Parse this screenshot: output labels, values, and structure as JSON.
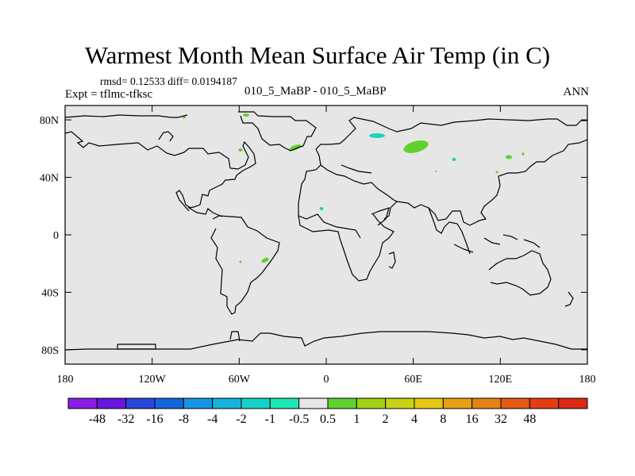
{
  "title": "Warmest Month Mean Surface Air Temp (in C)",
  "stats": "rmsd= 0.12533  diff= 0.0194187",
  "left_label": "Expt = tflmc-tfksc",
  "center_label": "010_5_MaBP - 010_5_MaBP",
  "right_label": "ANN",
  "map": {
    "lon_range": [
      -180,
      180
    ],
    "lat_range": [
      -90,
      90
    ],
    "background": "#e6e6e6",
    "x_ticks": [
      {
        "value": -180,
        "label": "180"
      },
      {
        "value": -120,
        "label": "120W"
      },
      {
        "value": -60,
        "label": "60W"
      },
      {
        "value": 0,
        "label": "0"
      },
      {
        "value": 60,
        "label": "60E"
      },
      {
        "value": 120,
        "label": "120E"
      },
      {
        "value": 180,
        "label": "180"
      }
    ],
    "y_ticks": [
      {
        "value": 80,
        "label": "80N"
      },
      {
        "value": 40,
        "label": "40N"
      },
      {
        "value": 0,
        "label": "0"
      },
      {
        "value": -40,
        "label": "40S"
      },
      {
        "value": -80,
        "label": "80S"
      }
    ],
    "anomaly_patches": [
      {
        "lon": 55,
        "lat": 60,
        "color": "#5ed12e"
      },
      {
        "lon": 35,
        "lat": 67,
        "color": "#16d7b8"
      },
      {
        "lon": -22,
        "lat": 59,
        "color": "#5ed12e"
      },
      {
        "lon": -55,
        "lat": 82,
        "color": "#5ed12e"
      },
      {
        "lon": -95,
        "lat": 80,
        "color": "#5ed12e"
      },
      {
        "lon": -59,
        "lat": 57,
        "color": "#5ed12e"
      },
      {
        "lon": 125,
        "lat": 53,
        "color": "#5ed12e"
      },
      {
        "lon": 133,
        "lat": 56,
        "color": "#5ed12e"
      },
      {
        "lon": 88,
        "lat": 52,
        "color": "#16d7b8"
      },
      {
        "lon": -3,
        "lat": 18,
        "color": "#16d7b8"
      },
      {
        "lon": -42,
        "lat": -18,
        "color": "#5ed12e"
      },
      {
        "lon": -58,
        "lat": -19,
        "color": "#5ed12e"
      },
      {
        "lon": 117,
        "lat": 43,
        "color": "#5ed12e"
      },
      {
        "lon": 74,
        "lat": 44,
        "color": "#5ed12e"
      }
    ]
  },
  "colorbar": {
    "colors": [
      "#8a1ee6",
      "#6a14e0",
      "#2846dc",
      "#1466dc",
      "#1496e6",
      "#16b4dc",
      "#16d2c8",
      "#1ee6b4",
      "#e6e6e6",
      "#5ed12e",
      "#a0d214",
      "#c8d214",
      "#e6c814",
      "#e6a014",
      "#e68214",
      "#e65a14",
      "#e63c14",
      "#dc2814"
    ],
    "labels": [
      "-48",
      "-32",
      "-16",
      "-8",
      "-4",
      "-2",
      "-1",
      "-0.5",
      "0.5",
      "1",
      "2",
      "4",
      "8",
      "16",
      "32",
      "48"
    ]
  }
}
